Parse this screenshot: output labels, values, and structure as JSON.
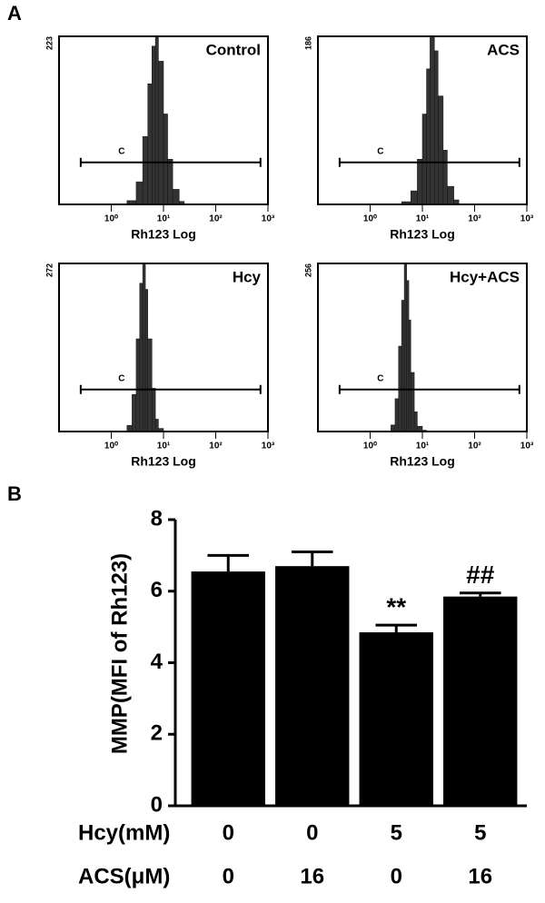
{
  "panel_labels": [
    "A",
    "B"
  ],
  "chart_data": [
    {
      "type": "histogram",
      "title": "Control",
      "xlabel": "Rh123 Log",
      "log_x": true,
      "color": "#333333",
      "xlim": [
        0.1,
        1000
      ],
      "xticks": [
        {
          "value": 1,
          "label": "10⁰"
        },
        {
          "value": 10,
          "label": "10¹"
        },
        {
          "value": 100,
          "label": "10²"
        },
        {
          "value": 1000,
          "label": "10³"
        }
      ],
      "ylim": [
        0,
        223
      ],
      "yticks": [
        223
      ],
      "gate_label": "C",
      "gate": [
        0.26,
        720
      ],
      "bins": [
        2,
        3,
        4,
        5,
        6,
        7,
        8,
        10,
        12,
        15,
        20,
        25
      ],
      "values": [
        5,
        30,
        90,
        160,
        210,
        223,
        190,
        120,
        60,
        20,
        4
      ]
    },
    {
      "type": "histogram",
      "title": "ACS",
      "xlabel": "Rh123 Log",
      "log_x": true,
      "color": "#333333",
      "xlim": [
        0.1,
        1000
      ],
      "xticks": [
        {
          "value": 1,
          "label": "10⁰"
        },
        {
          "value": 10,
          "label": "10¹"
        },
        {
          "value": 100,
          "label": "10²"
        },
        {
          "value": 1000,
          "label": "10³"
        }
      ],
      "ylim": [
        0,
        186
      ],
      "yticks": [
        186
      ],
      "gate_label": "C",
      "gate": [
        0.26,
        720
      ],
      "bins": [
        4,
        6,
        8,
        10,
        12,
        14,
        17,
        20,
        25,
        30,
        40,
        50
      ],
      "values": [
        3,
        15,
        50,
        100,
        150,
        186,
        170,
        120,
        60,
        20,
        5
      ]
    },
    {
      "type": "histogram",
      "title": "Hcy",
      "xlabel": "Rh123 Log",
      "log_x": true,
      "color": "#333333",
      "xlim": [
        0.1,
        1000
      ],
      "xticks": [
        {
          "value": 1,
          "label": "10⁰"
        },
        {
          "value": 10,
          "label": "10¹"
        },
        {
          "value": 100,
          "label": "10²"
        },
        {
          "value": 1000,
          "label": "10³"
        }
      ],
      "ylim": [
        0,
        272
      ],
      "yticks": [
        272
      ],
      "gate_label": "C",
      "gate": [
        0.26,
        720
      ],
      "bins": [
        2,
        2.5,
        3,
        3.5,
        4,
        4.5,
        5,
        6,
        7,
        8,
        10
      ],
      "values": [
        10,
        60,
        150,
        240,
        272,
        230,
        150,
        70,
        20,
        5
      ]
    },
    {
      "type": "histogram",
      "title": "Hcy+ACS",
      "xlabel": "Rh123 Log",
      "log_x": true,
      "color": "#333333",
      "xlim": [
        0.1,
        1000
      ],
      "xticks": [
        {
          "value": 1,
          "label": "10⁰"
        },
        {
          "value": 10,
          "label": "10¹"
        },
        {
          "value": 100,
          "label": "10²"
        },
        {
          "value": 1000,
          "label": "10³"
        }
      ],
      "ylim": [
        0,
        256
      ],
      "yticks": [
        256
      ],
      "gate_label": "C",
      "gate": [
        0.26,
        720
      ],
      "bins": [
        2.5,
        3,
        3.5,
        4,
        4.5,
        5,
        5.5,
        6,
        7,
        8,
        10,
        12
      ],
      "values": [
        10,
        50,
        130,
        200,
        256,
        230,
        170,
        90,
        30,
        8,
        2
      ]
    },
    {
      "type": "bar",
      "ylabel": "MMP(MFI of  Rh123)",
      "color": "#000000",
      "category_rows": [
        {
          "label": "Hcy(mM)",
          "values": [
            0,
            0,
            5,
            5
          ]
        },
        {
          "label": "ACS(μM)",
          "values": [
            0,
            16,
            0,
            16
          ]
        }
      ],
      "values": [
        6.55,
        6.7,
        4.85,
        5.85
      ],
      "errors": [
        0.45,
        0.4,
        0.2,
        0.1
      ],
      "annotations": {
        "2": "**",
        "3": "##"
      },
      "ylim": [
        0,
        8
      ],
      "yticks": [
        0,
        2,
        4,
        6,
        8
      ]
    }
  ]
}
